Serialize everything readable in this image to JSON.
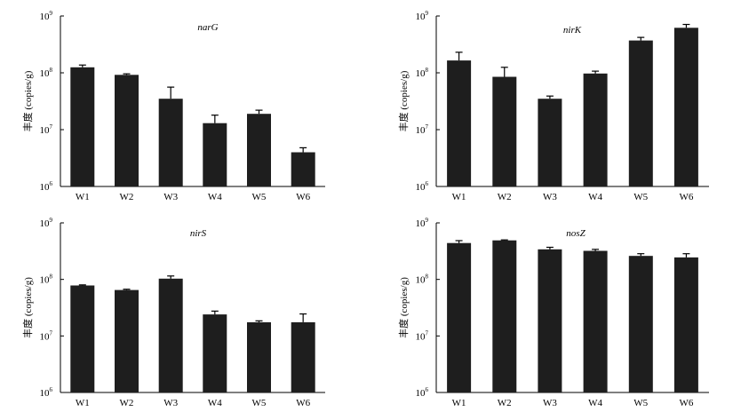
{
  "chart_data": [
    {
      "type": "bar",
      "title": "narG",
      "ylabel": "丰度 (copies/g)",
      "yscale": "log",
      "ylim": [
        1000000,
        1000000000
      ],
      "yticks": [
        {
          "base": "10",
          "exp": "6"
        },
        {
          "base": "10",
          "exp": "7"
        },
        {
          "base": "10",
          "exp": "8"
        },
        {
          "base": "10",
          "exp": "9"
        }
      ],
      "categories": [
        "W1",
        "W2",
        "W3",
        "W4",
        "W5",
        "W6"
      ],
      "values": [
        125000000,
        92000000,
        35000000,
        13000000,
        19000000,
        4000000
      ],
      "errors": [
        12000000,
        4000000,
        21000000,
        5000000,
        3000000,
        800000
      ],
      "bar_color": "#1e1e1e"
    },
    {
      "type": "bar",
      "title": "nirK",
      "ylabel": "丰度 (copies/g)",
      "yscale": "log",
      "ylim": [
        1000000,
        1000000000
      ],
      "yticks": [
        {
          "base": "10",
          "exp": "6"
        },
        {
          "base": "10",
          "exp": "7"
        },
        {
          "base": "10",
          "exp": "8"
        },
        {
          "base": "10",
          "exp": "9"
        }
      ],
      "categories": [
        "W1",
        "W2",
        "W3",
        "W4",
        "W5",
        "W6"
      ],
      "values": [
        165000000,
        85000000,
        35000000,
        97000000,
        370000000,
        620000000
      ],
      "errors": [
        65000000,
        40000000,
        4000000,
        10000000,
        50000000,
        90000000
      ],
      "bar_color": "#1e1e1e"
    },
    {
      "type": "bar",
      "title": "nirS",
      "ylabel": "丰度 (copies/g)",
      "yscale": "log",
      "ylim": [
        1000000,
        1000000000
      ],
      "yticks": [
        {
          "base": "10",
          "exp": "6"
        },
        {
          "base": "10",
          "exp": "7"
        },
        {
          "base": "10",
          "exp": "8"
        },
        {
          "base": "10",
          "exp": "9"
        }
      ],
      "categories": [
        "W1",
        "W2",
        "W3",
        "W4",
        "W5",
        "W6"
      ],
      "values": [
        78000000,
        65000000,
        103000000,
        24000000,
        17500000,
        17500000
      ],
      "errors": [
        2000000,
        2000000,
        12000000,
        3500000,
        1000000,
        7000000
      ],
      "bar_color": "#1e1e1e"
    },
    {
      "type": "bar",
      "title": "nosZ",
      "ylabel": "丰度 (copies/g)",
      "yscale": "log",
      "ylim": [
        1000000,
        1000000000
      ],
      "yticks": [
        {
          "base": "10",
          "exp": "6"
        },
        {
          "base": "10",
          "exp": "7"
        },
        {
          "base": "10",
          "exp": "8"
        },
        {
          "base": "10",
          "exp": "9"
        }
      ],
      "categories": [
        "W1",
        "W2",
        "W3",
        "W4",
        "W5",
        "W6"
      ],
      "values": [
        440000000,
        490000000,
        340000000,
        320000000,
        260000000,
        245000000
      ],
      "errors": [
        45000000,
        10000000,
        30000000,
        20000000,
        25000000,
        40000000
      ],
      "bar_color": "#1e1e1e"
    }
  ]
}
